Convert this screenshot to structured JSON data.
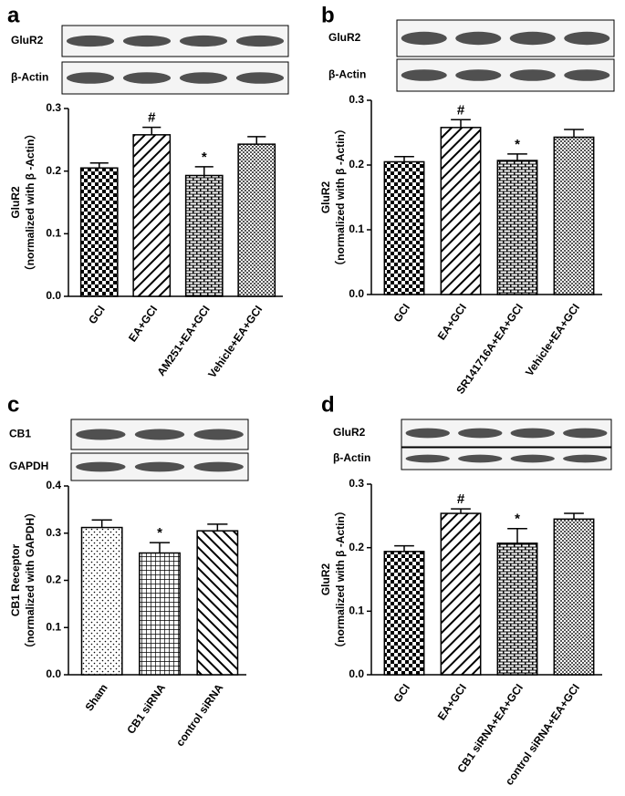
{
  "chart_data": [
    {
      "type": "bar",
      "panel": "a",
      "blot": [
        "GluR2",
        "β-Actin"
      ],
      "y_label": [
        "GluR2",
        "（normalized with β -Actin）"
      ],
      "categories": [
        "GCI",
        "EA+GCI",
        "AM251+EA+GCI",
        "Vehicle+EA+GCI"
      ],
      "values": [
        0.205,
        0.258,
        0.193,
        0.243
      ],
      "errors": [
        0.008,
        0.012,
        0.014,
        0.012
      ],
      "annotations": [
        null,
        "#",
        "*",
        null
      ],
      "ylim": [
        0,
        0.3
      ],
      "yticks": [
        {
          "value": 0,
          "label": "0.0"
        },
        0.1,
        0.2,
        0.3
      ]
    },
    {
      "type": "bar",
      "panel": "b",
      "blot": [
        "GluR2",
        "β-Actin"
      ],
      "y_label": [
        "GluR2",
        "（normalized with β -Actin）"
      ],
      "categories": [
        "GCI",
        "EA+GCI",
        "SR141716A+EA+GCI",
        "Vehicle+EA+GCI"
      ],
      "values": [
        0.205,
        0.258,
        0.207,
        0.243
      ],
      "errors": [
        0.008,
        0.012,
        0.01,
        0.012
      ],
      "annotations": [
        null,
        "#",
        "*",
        null
      ],
      "ylim": [
        0,
        0.3
      ],
      "yticks": [
        {
          "value": 0,
          "label": "0.0"
        },
        0.1,
        0.2,
        0.3
      ]
    },
    {
      "type": "bar",
      "panel": "c",
      "blot": [
        "CB1",
        "GAPDH"
      ],
      "y_label": [
        "CB1 Receptor",
        "（normalized with GAPDH）"
      ],
      "categories": [
        "Sham",
        "CB1 siRNA",
        "control siRNA"
      ],
      "values": [
        0.312,
        0.258,
        0.305
      ],
      "errors": [
        0.016,
        0.022,
        0.014
      ],
      "annotations": [
        null,
        "*",
        null
      ],
      "ylim": [
        0,
        0.4
      ],
      "yticks": [
        {
          "value": 0,
          "label": "0.0"
        },
        0.1,
        0.2,
        0.3,
        0.4
      ]
    },
    {
      "type": "bar",
      "panel": "d",
      "blot": [
        "GluR2",
        "β-Actin"
      ],
      "y_label": [
        "GluR2",
        "（normalized with β -Actin）"
      ],
      "categories": [
        "GCI",
        "EA+GCI",
        "CB1 siRNA+EA+GCI",
        "control siRNA+EA+GCI"
      ],
      "values": [
        0.194,
        0.254,
        0.207,
        0.245
      ],
      "errors": [
        0.009,
        0.007,
        0.023,
        0.009
      ],
      "annotations": [
        null,
        "#",
        "*",
        null
      ],
      "ylim": [
        0,
        0.3
      ],
      "yticks": [
        {
          "value": 0,
          "label": "0.0"
        },
        0.1,
        0.2,
        0.3
      ]
    }
  ]
}
